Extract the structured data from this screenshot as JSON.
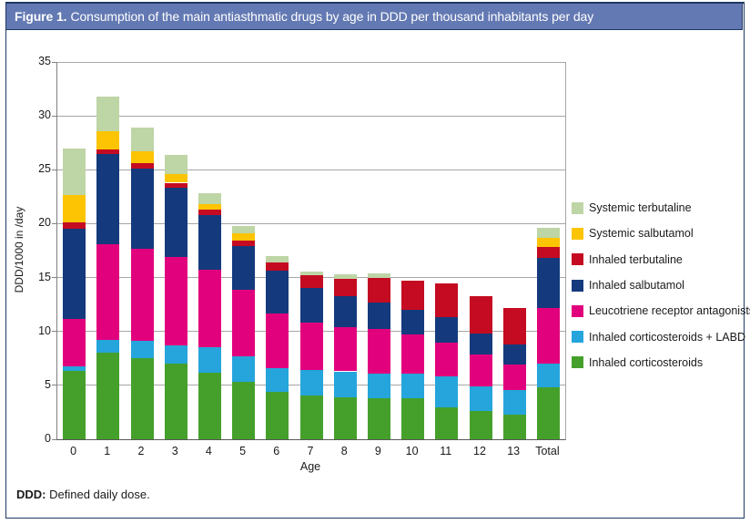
{
  "figure": {
    "title_prefix": "Figure 1.",
    "title_rest": "Consumption of the main antiasthmatic drugs by age in DDD per thousand inhabitants per day",
    "footer_bold": "DDD:",
    "footer_rest": " Defined daily dose."
  },
  "colors": {
    "title_bar_bg": "#6379b3",
    "border_navy": "#1f3864",
    "gridline": "#a6a6a6",
    "axis_line": "#808080",
    "text": "#1a1a1a"
  },
  "chart_data": {
    "type": "bar",
    "stacked": true,
    "title": "Consumption of the main antiasthmatic drugs by age in DDD per thousand inhabitants per day",
    "xlabel": "Age",
    "ylabel": "DDD/1000 in /day",
    "ylim": [
      0,
      35
    ],
    "ytick_step": 5,
    "grid": true,
    "legend_position": "right",
    "categories": [
      "0",
      "1",
      "2",
      "3",
      "4",
      "5",
      "6",
      "7",
      "8",
      "9",
      "10",
      "11",
      "12",
      "13",
      "Total"
    ],
    "series": [
      {
        "name": "Inhaled corticosteroids",
        "color": "#45a02b",
        "values": [
          6.3,
          8.0,
          7.5,
          7.0,
          6.2,
          5.3,
          4.4,
          4.1,
          3.9,
          3.8,
          3.8,
          3.0,
          2.6,
          2.3,
          4.8
        ]
      },
      {
        "name": "Inhaled corticosteroids + LABD",
        "color": "#25a5dc",
        "values": [
          0.5,
          1.2,
          1.6,
          1.7,
          2.3,
          2.4,
          2.2,
          2.3,
          2.4,
          2.3,
          2.3,
          2.8,
          2.3,
          2.3,
          2.2
        ]
      },
      {
        "name": "Leucotriene receptor antagonists",
        "color": "#e2017d",
        "values": [
          4.4,
          8.9,
          8.6,
          8.2,
          7.2,
          6.2,
          5.1,
          4.4,
          4.1,
          4.1,
          3.6,
          3.2,
          3.0,
          2.3,
          5.2
        ]
      },
      {
        "name": "Inhaled salbutamol",
        "color": "#143a7d",
        "values": [
          8.3,
          8.4,
          7.4,
          6.4,
          5.1,
          4.0,
          3.9,
          3.2,
          2.9,
          2.5,
          2.3,
          2.3,
          1.9,
          1.9,
          4.6
        ]
      },
      {
        "name": "Inhaled terbutaline",
        "color": "#c40b22",
        "values": [
          0.6,
          0.4,
          0.5,
          0.5,
          0.5,
          0.5,
          0.8,
          1.2,
          1.6,
          2.3,
          2.7,
          3.2,
          3.5,
          3.4,
          1.0
        ]
      },
      {
        "name": "Systemic salbutamol",
        "color": "#fdc404",
        "values": [
          2.6,
          1.7,
          1.1,
          0.8,
          0.5,
          0.7,
          0,
          0,
          0,
          0,
          0,
          0,
          0,
          0,
          0.9
        ]
      },
      {
        "name": "Systemic terbutaline",
        "color": "#bed5a6",
        "values": [
          4.3,
          3.2,
          2.2,
          1.8,
          1.0,
          0.7,
          0.6,
          0.4,
          0.4,
          0.4,
          0,
          0,
          0,
          0,
          0.9
        ]
      }
    ],
    "totals": [
      27.0,
      31.8,
      28.9,
      26.4,
      22.8,
      19.8,
      17.0,
      15.6,
      15.3,
      15.4,
      14.7,
      14.5,
      13.3,
      12.2,
      19.6
    ]
  }
}
